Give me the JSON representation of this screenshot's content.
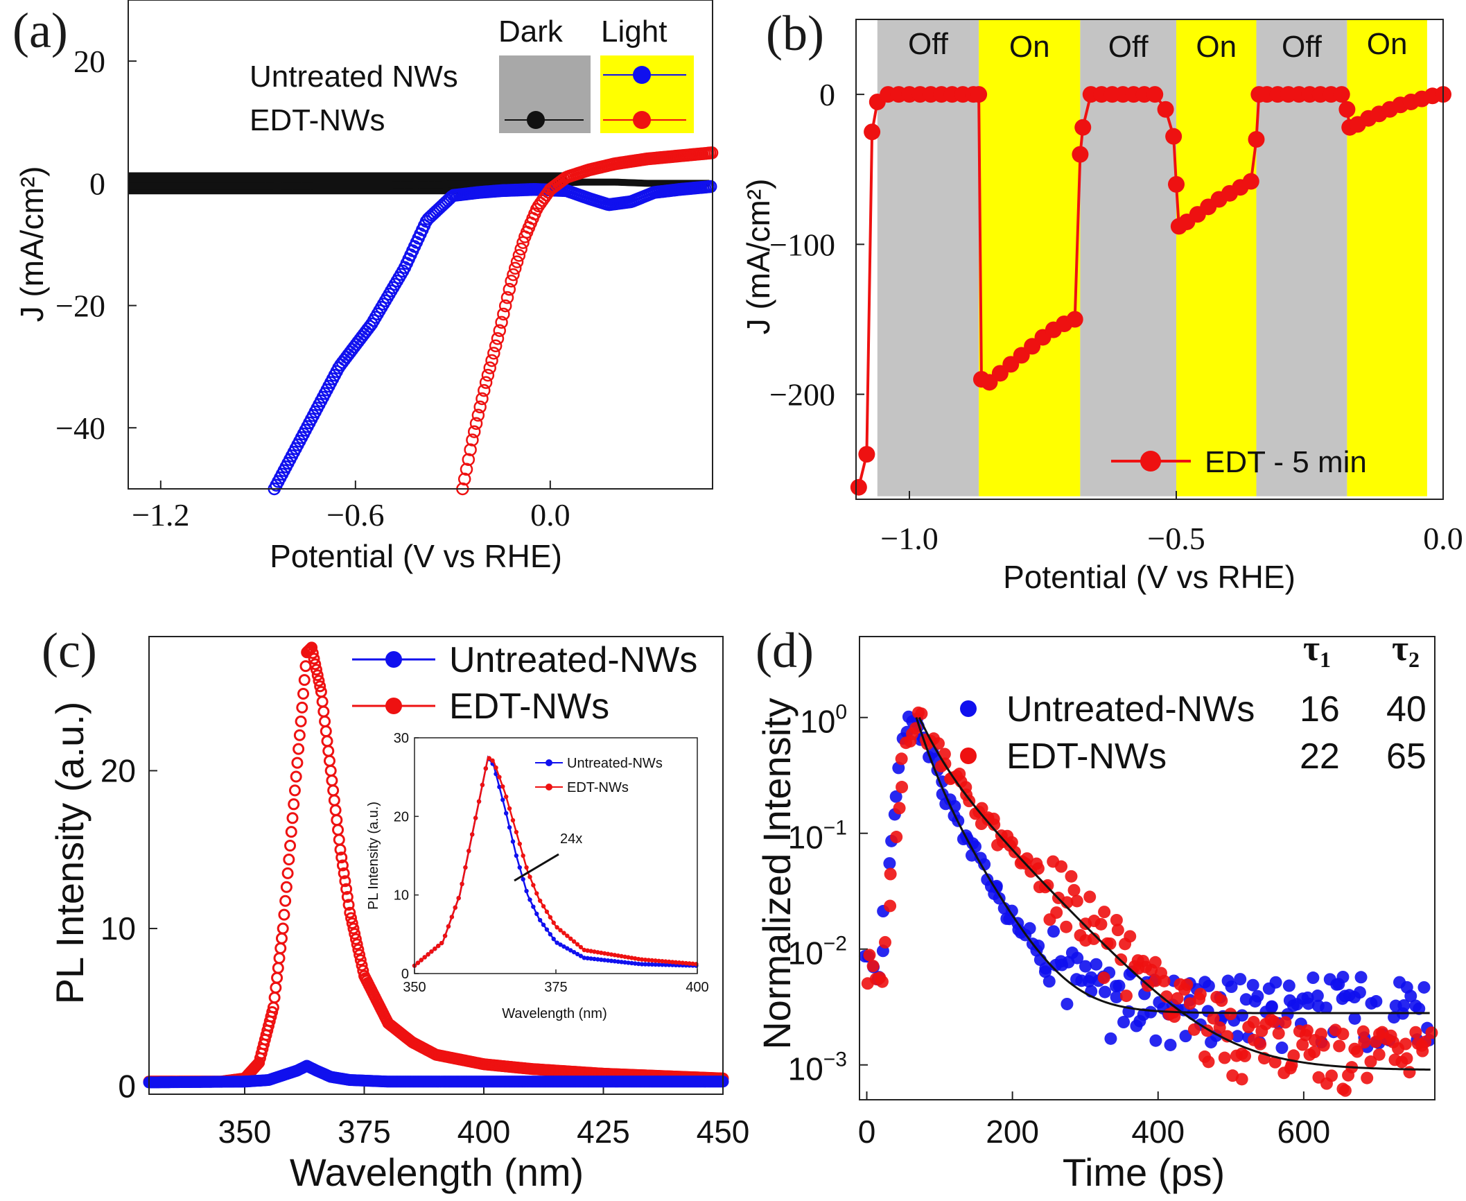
{
  "chart_data": [
    {
      "panel": "(a)",
      "type": "line",
      "xlabel": "Potential (V vs RHE)",
      "ylabel": "J (mA/cm²)",
      "xlim": [
        -1.3,
        0.5
      ],
      "ylim": [
        -50,
        30
      ],
      "xticks": [
        -1.2,
        -0.6,
        0.0
      ],
      "xtick_labels": [
        "−1.2",
        "−0.6",
        "0.0"
      ],
      "yticks": [
        20,
        0,
        -20,
        -40
      ],
      "ytick_labels": [
        "20",
        "0",
        "−20",
        "−40"
      ],
      "legend": {
        "col_dark": "Dark",
        "col_light": "Light",
        "row_untreated": "Untreated NWs",
        "row_edt": "EDT-NWs"
      },
      "series": [
        {
          "name": "Dark",
          "color": "#000000",
          "x": [
            -1.3,
            -0.9,
            -0.5,
            -0.2,
            0.0,
            0.1,
            0.2,
            0.3,
            0.5
          ],
          "y": [
            -0.5,
            -0.5,
            -0.3,
            -0.1,
            0.0,
            0.2,
            0.2,
            0.0,
            0.0
          ]
        },
        {
          "name": "Untreated NWs",
          "color": "#1010ee",
          "x": [
            -0.85,
            -0.75,
            -0.65,
            -0.55,
            -0.45,
            -0.38,
            -0.3,
            -0.22,
            -0.15,
            -0.05,
            0.05,
            0.12,
            0.18,
            0.25,
            0.32,
            0.4,
            0.5
          ],
          "y": [
            -50,
            -40,
            -30,
            -23,
            -14,
            -6,
            -2,
            -1.5,
            -1.2,
            -1.0,
            -1.2,
            -2.5,
            -3.5,
            -3.0,
            -1.5,
            -1.0,
            -0.5
          ]
        },
        {
          "name": "EDT-NWs",
          "color": "#ee1111",
          "x": [
            -0.27,
            -0.24,
            -0.2,
            -0.16,
            -0.12,
            -0.08,
            -0.04,
            0.0,
            0.05,
            0.12,
            0.2,
            0.3,
            0.4,
            0.5
          ],
          "y": [
            -50,
            -42,
            -33,
            -25,
            -16,
            -9,
            -4,
            -1,
            1,
            2.2,
            3.2,
            4.0,
            4.5,
            5.0
          ]
        }
      ]
    },
    {
      "panel": "(b)",
      "type": "line",
      "xlabel": "Potential (V vs RHE)",
      "ylabel": "J (mA/cm²)",
      "xlim": [
        -1.1,
        0.0
      ],
      "ylim": [
        -270,
        50
      ],
      "xticks": [
        -1.0,
        -0.5,
        0.0
      ],
      "xtick_labels": [
        "−1.0",
        "−0.5",
        "0.0"
      ],
      "yticks": [
        0,
        -100,
        -200
      ],
      "ytick_labels": [
        "0",
        "−100",
        "−200"
      ],
      "bands": [
        {
          "label": "Off",
          "from": -1.06,
          "to": -0.87
        },
        {
          "label": "On",
          "from": -0.87,
          "to": -0.68
        },
        {
          "label": "Off",
          "from": -0.68,
          "to": -0.5
        },
        {
          "label": "On",
          "from": -0.5,
          "to": -0.35
        },
        {
          "label": "Off",
          "from": -0.35,
          "to": -0.18
        },
        {
          "label": "On",
          "from": -0.18,
          "to": -0.03
        }
      ],
      "legend": "EDT - 5 min",
      "series": [
        {
          "name": "EDT - 5 min",
          "color": "#ee1111",
          "x": [
            -1.095,
            -1.08,
            -1.07,
            -1.06,
            -1.04,
            -1.02,
            -1.0,
            -0.98,
            -0.96,
            -0.94,
            -0.92,
            -0.9,
            -0.88,
            -0.87,
            -0.865,
            -0.85,
            -0.83,
            -0.81,
            -0.79,
            -0.77,
            -0.75,
            -0.73,
            -0.71,
            -0.69,
            -0.68,
            -0.675,
            -0.66,
            -0.64,
            -0.62,
            -0.6,
            -0.58,
            -0.56,
            -0.54,
            -0.52,
            -0.505,
            -0.5,
            -0.495,
            -0.48,
            -0.46,
            -0.44,
            -0.42,
            -0.4,
            -0.38,
            -0.36,
            -0.35,
            -0.345,
            -0.33,
            -0.31,
            -0.29,
            -0.27,
            -0.25,
            -0.23,
            -0.21,
            -0.19,
            -0.18,
            -0.175,
            -0.16,
            -0.14,
            -0.12,
            -0.1,
            -0.08,
            -0.06,
            -0.04,
            -0.02,
            0.0
          ],
          "y": [
            -262,
            -240,
            -25,
            -5,
            0,
            0,
            0,
            0,
            0,
            0,
            0,
            0,
            0,
            0,
            -190,
            -192,
            -186,
            -180,
            -174,
            -168,
            -162,
            -157,
            -153,
            -150,
            -40,
            -22,
            0,
            0,
            0,
            0,
            0,
            0,
            0,
            -10,
            -28,
            -60,
            -88,
            -85,
            -80,
            -75,
            -70,
            -66,
            -62,
            -58,
            -30,
            0,
            0,
            0,
            0,
            0,
            0,
            0,
            0,
            0,
            -10,
            -22,
            -20,
            -16,
            -13,
            -10,
            -7,
            -5,
            -3,
            -1,
            0
          ]
        }
      ]
    },
    {
      "panel": "(c)",
      "type": "line",
      "xlabel": "Wavelength (nm)",
      "ylabel": "PL Intensity (a.u.)",
      "xlim": [
        330,
        450
      ],
      "ylim": [
        -0.5,
        28.5
      ],
      "xticks": [
        350,
        375,
        400,
        425,
        450
      ],
      "xtick_labels": [
        "350",
        "375",
        "400",
        "425",
        "450"
      ],
      "yticks": [
        0,
        10,
        20
      ],
      "ytick_labels": [
        "0",
        "10",
        "20"
      ],
      "legend": [
        "Untreated-NWs",
        "EDT-NWs"
      ],
      "series": [
        {
          "name": "Untreated-NWs",
          "color": "#1010ee",
          "x": [
            330,
            350,
            355,
            358,
            361,
            363,
            365,
            368,
            372,
            380,
            400,
            450
          ],
          "y": [
            0.25,
            0.3,
            0.4,
            0.7,
            1.0,
            1.3,
            1.0,
            0.6,
            0.4,
            0.3,
            0.3,
            0.3
          ]
        },
        {
          "name": "EDT-NWs",
          "color": "#ee1111",
          "x": [
            330,
            345,
            350,
            353,
            356,
            358,
            360,
            362,
            363,
            364,
            366,
            368,
            370,
            372,
            375,
            380,
            385,
            390,
            400,
            410,
            425,
            450
          ],
          "y": [
            0.3,
            0.3,
            0.5,
            1.5,
            5,
            10,
            17,
            24,
            27.5,
            27.8,
            25,
            20,
            15,
            11,
            7,
            4,
            2.8,
            2.0,
            1.4,
            1.1,
            0.8,
            0.5
          ]
        }
      ],
      "inset": {
        "xlabel": "Wavelength (nm)",
        "ylabel": "PL Intensity (a.u.)",
        "xlim": [
          350,
          400
        ],
        "ylim": [
          0,
          30
        ],
        "xticks": [
          350,
          375,
          400
        ],
        "xtick_labels": [
          "350",
          "375",
          "400"
        ],
        "yticks": [
          0,
          10,
          20,
          30
        ],
        "ytick_labels": [
          "0",
          "10",
          "20",
          "30"
        ],
        "legend": [
          "Untreated-NWs",
          "EDT-NWs"
        ],
        "annotation": "24x",
        "series": [
          {
            "name": "Untreated-NWs",
            "color": "#1010ee",
            "x": [
              350,
              355,
              358,
              360,
              362,
              363,
              364,
              366,
              368,
              370,
              372,
              375,
              380,
              390,
              400
            ],
            "y": [
              1,
              4,
              10,
              17,
              24,
              27.5,
              26.5,
              21,
              15,
              10,
              7,
              4,
              2,
              1.2,
              1
            ]
          },
          {
            "name": "EDT-NWs",
            "color": "#ee1111",
            "x": [
              350,
              355,
              358,
              360,
              362,
              363,
              364,
              366,
              368,
              370,
              372,
              375,
              380,
              390,
              400
            ],
            "y": [
              1,
              4,
              10,
              17,
              24,
              27.5,
              27,
              23,
              18,
              13,
              9.5,
              6,
              3,
              1.8,
              1.2
            ]
          }
        ]
      }
    },
    {
      "panel": "(d)",
      "type": "scatter",
      "xlabel": "Time (ps)",
      "ylabel": "Normalized Intensity",
      "yscale": "log",
      "xlim": [
        -10,
        780
      ],
      "ylim": [
        0.0005,
        5
      ],
      "xticks": [
        0,
        200,
        400,
        600
      ],
      "xtick_labels": [
        "0",
        "200",
        "400",
        "600"
      ],
      "ytick_labels": [
        {
          "base": "10",
          "exp": "0",
          "value": 1
        },
        {
          "base": "10",
          "exp": "−1",
          "value": 0.1
        },
        {
          "base": "10",
          "exp": "−2",
          "value": 0.01
        },
        {
          "base": "10",
          "exp": "−3",
          "value": 0.001
        }
      ],
      "legend": {
        "tau1_label": "τ",
        "tau1_sub": "1",
        "tau2_label": "τ",
        "tau2_sub": "2",
        "rows": [
          {
            "name": "Untreated-NWs",
            "color": "#1010ee",
            "tau1": "16",
            "tau2": "40"
          },
          {
            "name": "EDT-NWs",
            "color": "#ee1111",
            "tau1": "22",
            "tau2": "65"
          }
        ]
      },
      "series": [
        {
          "name": "Untreated-NWs",
          "color": "#1010ee",
          "peak_time": 68,
          "fit_a": 0.55,
          "fit_tau1": 16,
          "fit_b": 0.45,
          "fit_tau2": 40,
          "offset": 0.0028
        },
        {
          "name": "EDT-NWs",
          "color": "#ee1111",
          "peak_time": 72,
          "fit_a": 0.5,
          "fit_tau1": 22,
          "fit_b": 0.5,
          "fit_tau2": 65,
          "offset": 0.0009
        }
      ]
    }
  ]
}
